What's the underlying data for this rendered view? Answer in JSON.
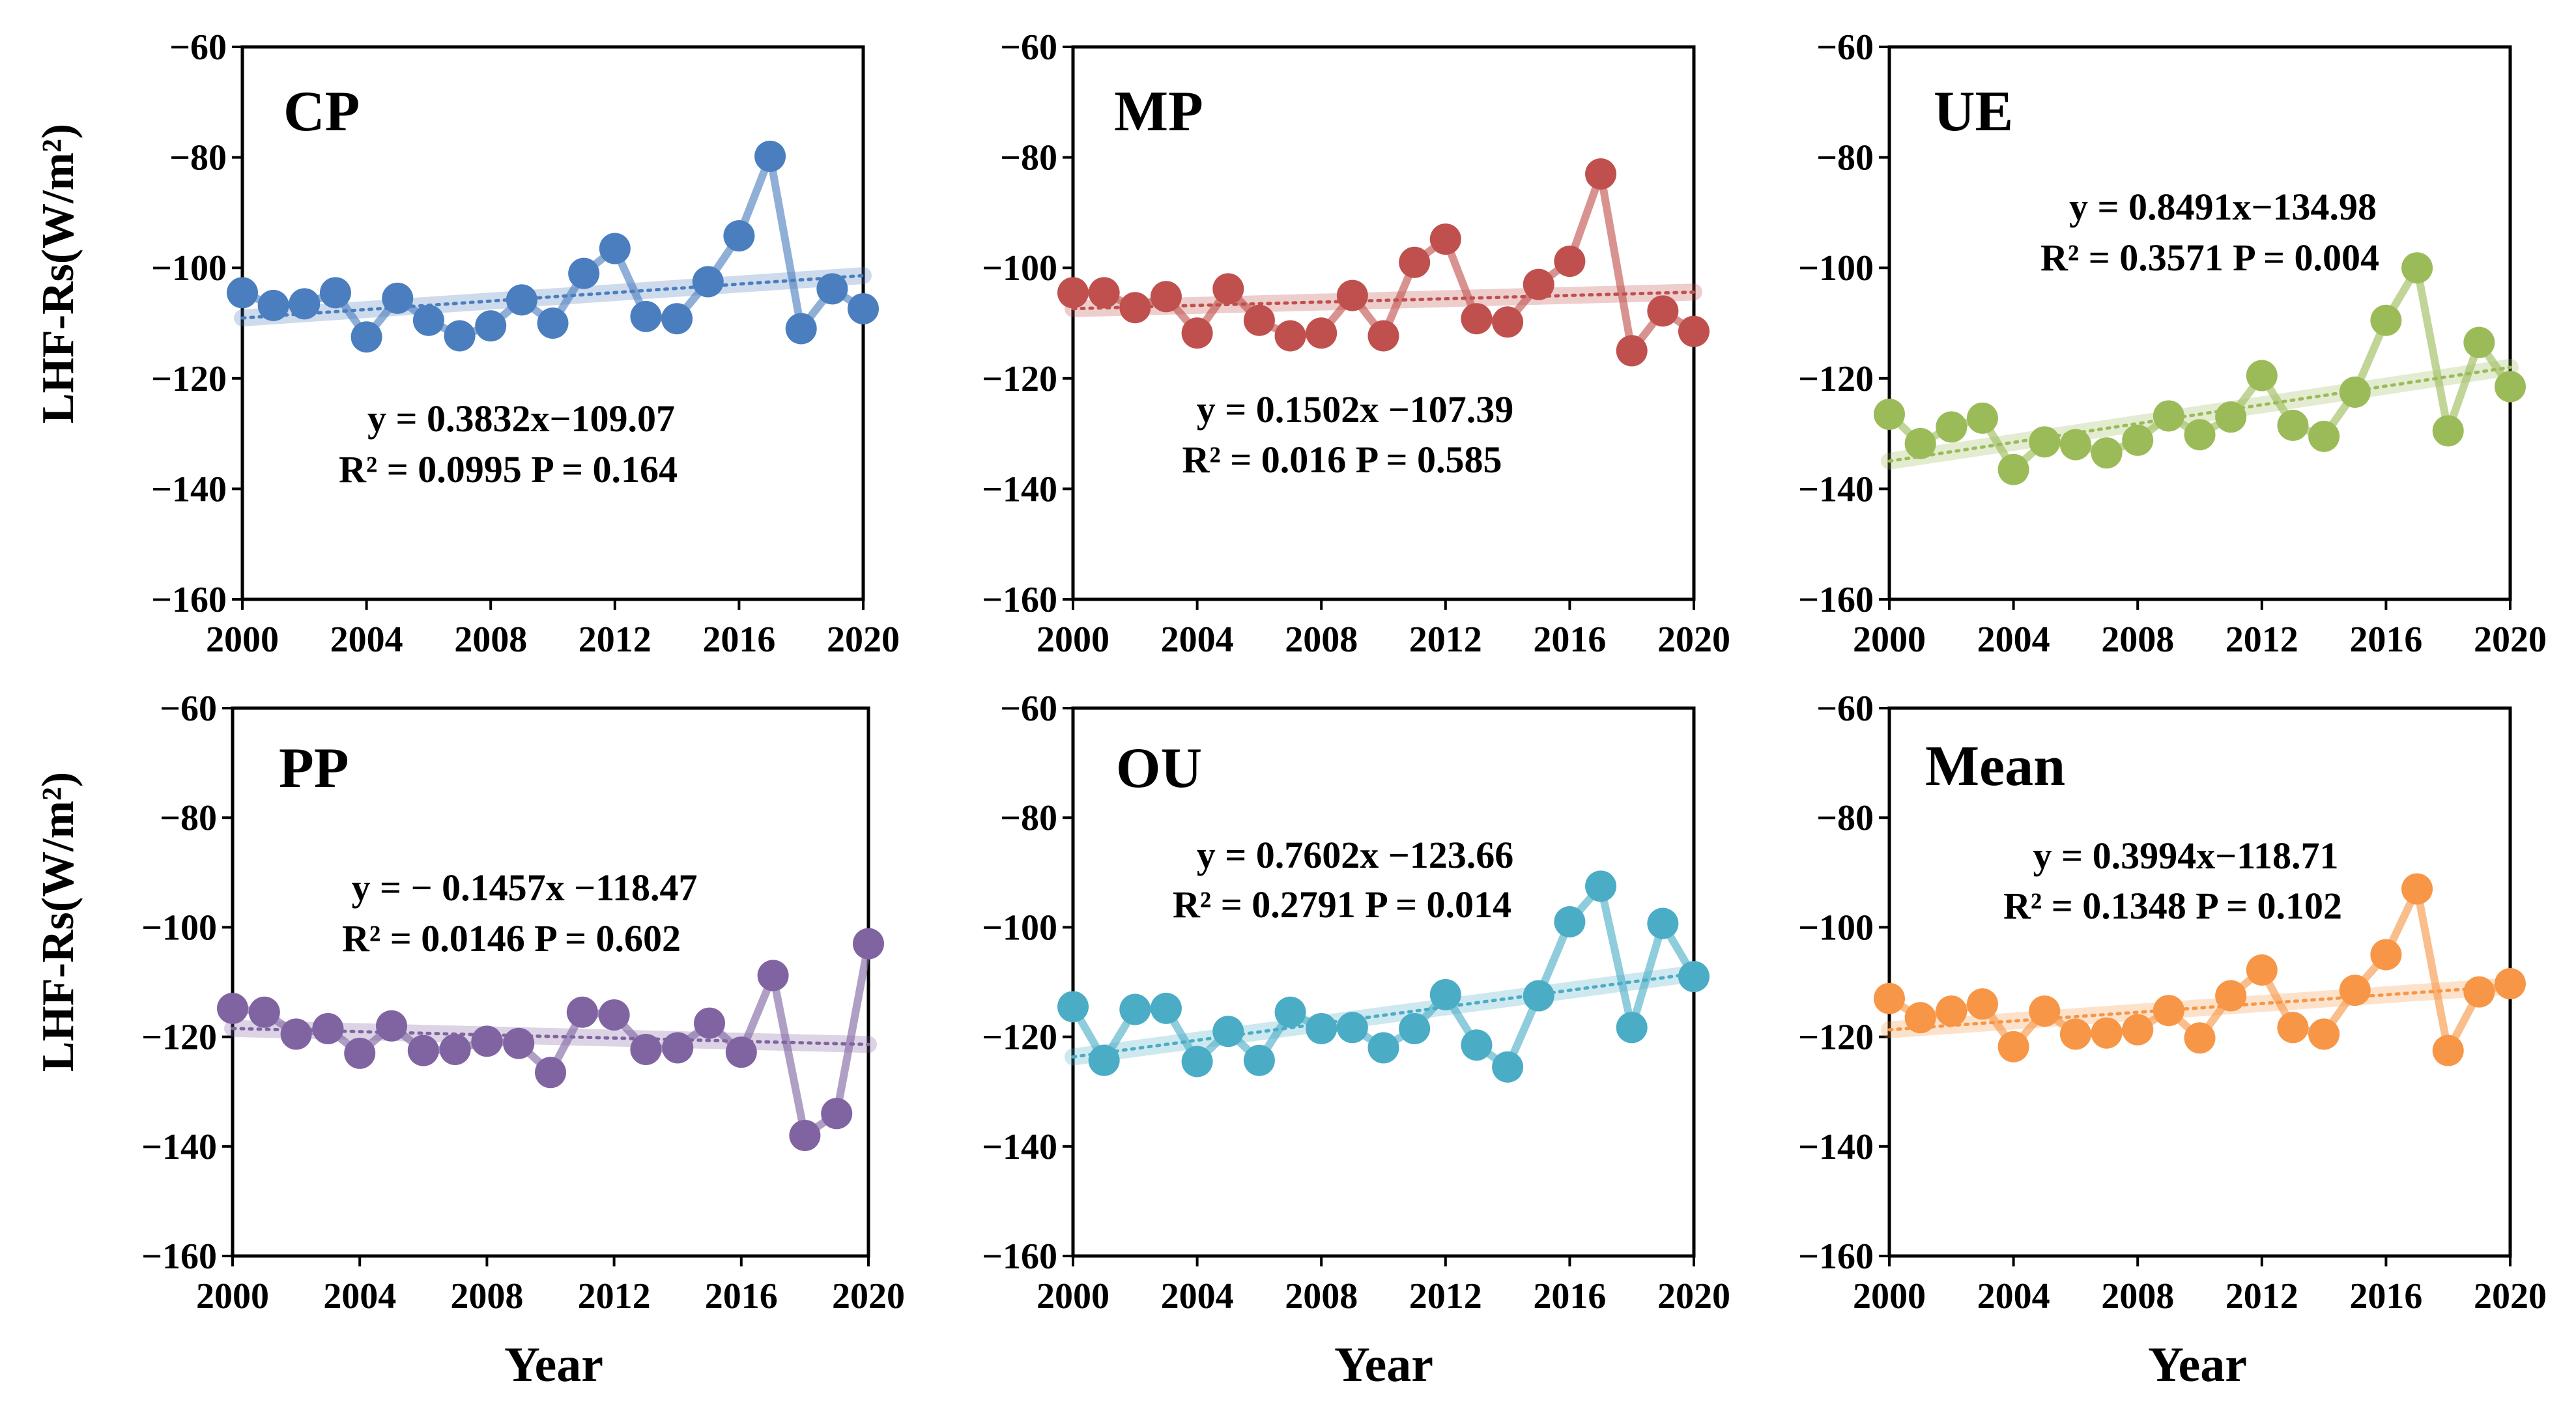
{
  "figure": {
    "ylabel": "LHF-Rs(W/m²)",
    "xlabel": "Year"
  },
  "chart_data": [
    {
      "type": "line",
      "title": "CP",
      "color": "#4a7ebf",
      "equation": "y = 0.3832x−109.07",
      "stats": "R² = 0.0995  P = 0.164",
      "ylim": [
        -160,
        -60
      ],
      "yticks": [
        "-60",
        "-80",
        "-100",
        "-120",
        "-140",
        "-160"
      ],
      "xlim": [
        2000,
        2020
      ],
      "xticks": [
        "2000",
        "2004",
        "2008",
        "2012",
        "2016",
        "2020"
      ],
      "x": [
        2000,
        2001,
        2002,
        2003,
        2004,
        2005,
        2006,
        2007,
        2008,
        2009,
        2010,
        2011,
        2012,
        2013,
        2014,
        2015,
        2016,
        2017,
        2018,
        2019,
        2020
      ],
      "values": [
        -104.5,
        -106.8,
        -106.5,
        -104.5,
        -112.5,
        -105.5,
        -109.5,
        -112.3,
        -110.5,
        -105.8,
        -110.0,
        -101.0,
        -96.5,
        -108.8,
        -109.2,
        -102.5,
        -94.2,
        -79.8,
        -111.0,
        -103.8,
        -107.4
      ],
      "trend": {
        "slope": 0.3832,
        "intercept": -109.07
      }
    },
    {
      "type": "line",
      "title": "MP",
      "color": "#c0504d",
      "equation": "y = 0.1502x −107.39",
      "stats": "R² = 0.016  P = 0.585",
      "ylim": [
        -160,
        -60
      ],
      "yticks": [
        "-60",
        "-80",
        "-100",
        "-120",
        "-140",
        "-160"
      ],
      "xlim": [
        2000,
        2020
      ],
      "xticks": [
        "2000",
        "2004",
        "2008",
        "2012",
        "2016",
        "2020"
      ],
      "x": [
        2000,
        2001,
        2002,
        2003,
        2004,
        2005,
        2006,
        2007,
        2008,
        2009,
        2010,
        2011,
        2012,
        2013,
        2014,
        2015,
        2016,
        2017,
        2018,
        2019,
        2020
      ],
      "values": [
        -104.5,
        -104.5,
        -107.2,
        -105.2,
        -111.8,
        -103.8,
        -109.5,
        -112.3,
        -111.8,
        -105.0,
        -112.3,
        -99.0,
        -94.8,
        -109.2,
        -109.8,
        -103.0,
        -98.8,
        -83.0,
        -115.0,
        -107.8,
        -111.5
      ],
      "trend": {
        "slope": 0.1502,
        "intercept": -107.39
      }
    },
    {
      "type": "line",
      "title": "UE",
      "color": "#9bbb59",
      "equation": "y = 0.8491x−134.98",
      "stats": "R² = 0.3571  P = 0.004",
      "ylim": [
        -160,
        -60
      ],
      "yticks": [
        "-60",
        "-80",
        "-100",
        "-120",
        "-140",
        "-160"
      ],
      "xlim": [
        2000,
        2020
      ],
      "xticks": [
        "2000",
        "2004",
        "2008",
        "2012",
        "2016",
        "2020"
      ],
      "x": [
        2000,
        2001,
        2002,
        2003,
        2004,
        2005,
        2006,
        2007,
        2008,
        2009,
        2010,
        2011,
        2012,
        2013,
        2014,
        2015,
        2016,
        2017,
        2018,
        2019,
        2020
      ],
      "values": [
        -126.5,
        -131.8,
        -128.8,
        -127.2,
        -136.5,
        -131.5,
        -132.0,
        -133.5,
        -131.2,
        -126.8,
        -130.2,
        -127.0,
        -119.5,
        -128.5,
        -130.5,
        -122.5,
        -109.5,
        -100.0,
        -129.5,
        -113.5,
        -121.5
      ],
      "trend": {
        "slope": 0.8491,
        "intercept": -134.98
      }
    },
    {
      "type": "line",
      "title": "PP",
      "color": "#8064a2",
      "equation": "y = − 0.1457x −118.47",
      "stats": "R² = 0.0146  P = 0.602",
      "ylim": [
        -160,
        -60
      ],
      "yticks": [
        "-60",
        "-80",
        "-100",
        "-120",
        "-140",
        "-160"
      ],
      "xlim": [
        2000,
        2020
      ],
      "xticks": [
        "2000",
        "2004",
        "2008",
        "2012",
        "2016",
        "2020"
      ],
      "x": [
        2000,
        2001,
        2002,
        2003,
        2004,
        2005,
        2006,
        2007,
        2008,
        2009,
        2010,
        2011,
        2012,
        2013,
        2014,
        2015,
        2016,
        2017,
        2018,
        2019,
        2020
      ],
      "values": [
        -114.8,
        -115.5,
        -119.5,
        -118.5,
        -123.0,
        -118.0,
        -122.5,
        -122.3,
        -120.8,
        -121.2,
        -126.5,
        -115.5,
        -116.0,
        -122.3,
        -122.0,
        -117.5,
        -122.8,
        -108.8,
        -138.0,
        -134.0,
        -103.0
      ],
      "trend": {
        "slope": -0.1457,
        "intercept": -118.47
      }
    },
    {
      "type": "line",
      "title": "OU",
      "color": "#4bacc6",
      "equation": "y = 0.7602x −123.66",
      "stats": "R² = 0.2791  P = 0.014",
      "ylim": [
        -160,
        -60
      ],
      "yticks": [
        "-60",
        "-80",
        "-100",
        "-120",
        "-140",
        "-160"
      ],
      "xlim": [
        2000,
        2020
      ],
      "xticks": [
        "2000",
        "2004",
        "2008",
        "2012",
        "2016",
        "2020"
      ],
      "x": [
        2000,
        2001,
        2002,
        2003,
        2004,
        2005,
        2006,
        2007,
        2008,
        2009,
        2010,
        2011,
        2012,
        2013,
        2014,
        2015,
        2016,
        2017,
        2018,
        2019,
        2020
      ],
      "values": [
        -114.5,
        -124.3,
        -115.0,
        -114.8,
        -124.5,
        -119.0,
        -124.3,
        -115.5,
        -118.5,
        -118.3,
        -122.0,
        -118.5,
        -112.3,
        -121.5,
        -125.5,
        -112.5,
        -99.0,
        -92.5,
        -118.3,
        -99.3,
        -109.0
      ],
      "trend": {
        "slope": 0.7602,
        "intercept": -123.66
      }
    },
    {
      "type": "line",
      "title": "Mean",
      "color": "#f79646",
      "equation": "y = 0.3994x−118.71",
      "stats": "R² = 0.1348  P = 0.102",
      "ylim": [
        -160,
        -60
      ],
      "yticks": [
        "-60",
        "-80",
        "-100",
        "-120",
        "-140",
        "-160"
      ],
      "xlim": [
        2000,
        2020
      ],
      "xticks": [
        "2000",
        "2004",
        "2008",
        "2012",
        "2016",
        "2020"
      ],
      "x": [
        2000,
        2001,
        2002,
        2003,
        2004,
        2005,
        2006,
        2007,
        2008,
        2009,
        2010,
        2011,
        2012,
        2013,
        2014,
        2015,
        2016,
        2017,
        2018,
        2019,
        2020
      ],
      "values": [
        -113.0,
        -116.5,
        -115.3,
        -114.0,
        -121.8,
        -115.3,
        -119.5,
        -119.3,
        -118.7,
        -115.2,
        -120.2,
        -112.5,
        -107.8,
        -118.3,
        -119.5,
        -111.5,
        -105.0,
        -93.0,
        -122.5,
        -111.8,
        -110.3
      ],
      "trend": {
        "slope": 0.3994,
        "intercept": -118.71
      }
    }
  ]
}
